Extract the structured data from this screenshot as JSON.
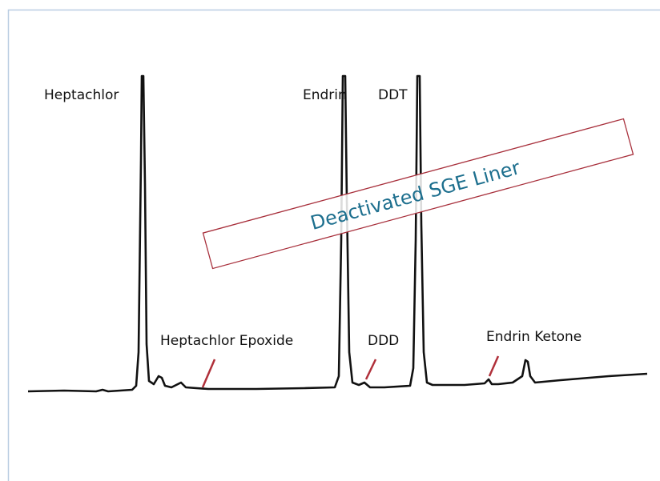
{
  "peaks": [
    {
      "label": "Heptachlor"
    },
    {
      "label": "Endrin"
    },
    {
      "label": "DDT"
    },
    {
      "label": "Heptachlor Epoxide"
    },
    {
      "label": "DDD"
    },
    {
      "label": "Endrin Ketone"
    }
  ],
  "banner": {
    "text": "Deactivated SGE Liner"
  }
}
